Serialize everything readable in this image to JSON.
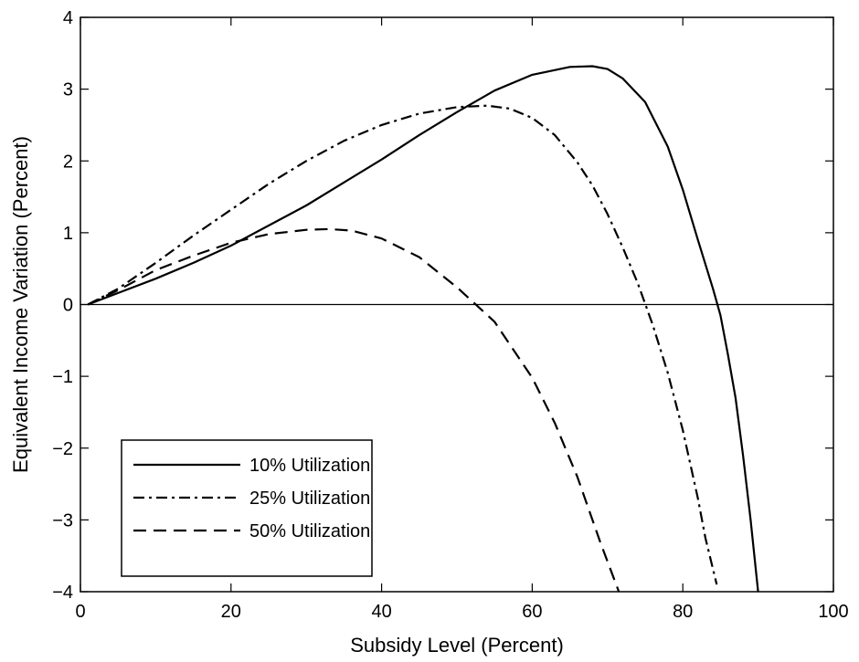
{
  "chart_data": {
    "type": "line",
    "xlabel": "Subsidy Level (Percent)",
    "ylabel": "Equivalent Income Variation (Percent)",
    "xlim": [
      0,
      100
    ],
    "ylim": [
      -4,
      4
    ],
    "xticks": [
      0,
      20,
      40,
      60,
      80,
      100
    ],
    "yticks": [
      -4,
      -3,
      -2,
      -1,
      0,
      1,
      2,
      3,
      4
    ],
    "grid": false,
    "zero_line": true,
    "legend_position": "bottom-left",
    "series": [
      {
        "name": "10% Utilization",
        "style": "solid",
        "x": [
          1,
          5,
          10,
          15,
          20,
          25,
          30,
          35,
          40,
          45,
          50,
          55,
          60,
          65,
          68,
          70,
          72,
          75,
          78,
          80,
          82,
          84,
          85,
          86,
          87,
          88,
          89,
          90
        ],
        "y": [
          0,
          0.16,
          0.36,
          0.58,
          0.82,
          1.1,
          1.38,
          1.7,
          2.02,
          2.36,
          2.68,
          2.98,
          3.2,
          3.31,
          3.32,
          3.28,
          3.15,
          2.82,
          2.2,
          1.6,
          0.9,
          0.22,
          -0.15,
          -0.7,
          -1.3,
          -2.1,
          -3.0,
          -4.0
        ]
      },
      {
        "name": "25% Utilization",
        "style": "dashdot",
        "x": [
          1,
          5,
          10,
          15,
          20,
          25,
          30,
          35,
          40,
          45,
          50,
          54,
          57,
          60,
          63,
          66,
          68,
          70,
          72,
          74,
          76,
          78,
          80,
          82,
          83,
          84.5
        ],
        "y": [
          0,
          0.22,
          0.58,
          0.96,
          1.32,
          1.68,
          2.0,
          2.28,
          2.5,
          2.66,
          2.75,
          2.77,
          2.73,
          2.6,
          2.36,
          1.98,
          1.66,
          1.26,
          0.8,
          0.3,
          -0.28,
          -0.95,
          -1.75,
          -2.7,
          -3.25,
          -3.9
        ]
      },
      {
        "name": "50% Utilization",
        "style": "dashed",
        "x": [
          1,
          5,
          10,
          15,
          20,
          25,
          30,
          33,
          36,
          40,
          45,
          50,
          55,
          60,
          63,
          66,
          69,
          71.5
        ],
        "y": [
          0,
          0.2,
          0.48,
          0.68,
          0.86,
          0.98,
          1.04,
          1.05,
          1.03,
          0.92,
          0.66,
          0.24,
          -0.24,
          -1.02,
          -1.65,
          -2.4,
          -3.3,
          -4.0
        ]
      }
    ]
  }
}
